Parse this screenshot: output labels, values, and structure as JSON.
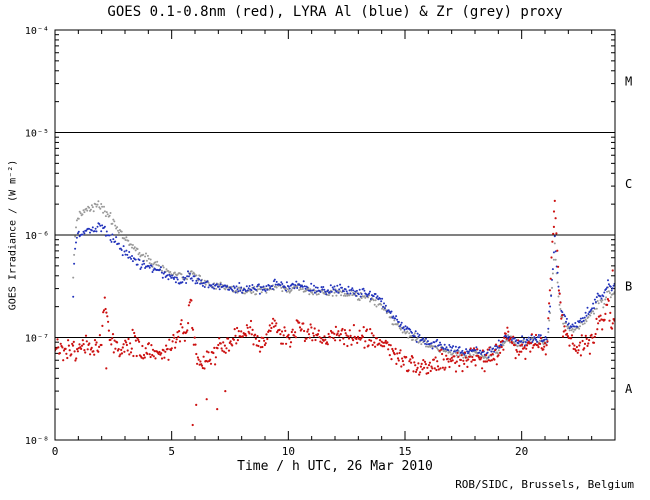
{
  "chart_data": {
    "type": "scatter",
    "title": "GOES 0.1-0.8nm (red), LYRA Al (blue) & Zr (grey) proxy",
    "xlabel": "Time / h UTC, 26 Mar 2010",
    "ylabel": "GOES Irradiance / (W m⁻²)",
    "credit": "ROB/SIDC, Brussels, Belgium",
    "grid": false,
    "legend_position": "none",
    "x_range": [
      0,
      24
    ],
    "x_major_ticks": [
      0,
      5,
      10,
      15,
      20
    ],
    "x_minor_step": 1,
    "y_log_range": [
      -8,
      -4
    ],
    "y_major_decades": [
      -8,
      -7,
      -6,
      -5,
      -4
    ],
    "y_tick_labels": [
      "10⁻⁸",
      "10⁻⁷",
      "10⁻⁶",
      "10⁻⁵",
      "10⁻⁴"
    ],
    "hlines": [
      1e-07,
      1e-06,
      1e-05
    ],
    "flare_class_labels": [
      {
        "label": "M",
        "log_y": -4.5
      },
      {
        "label": "C",
        "log_y": -5.5
      },
      {
        "label": "B",
        "log_y": -6.5
      },
      {
        "label": "A",
        "log_y": -7.5
      }
    ],
    "axis_color": "#000000",
    "series": [
      {
        "id": "lyra-zr-grey",
        "name": "LYRA Zr proxy",
        "color": "#999999",
        "sigma": 0.02,
        "step": 0.04,
        "r": 1.0,
        "anchors": [
          [
            0.78,
            3.5e-07
          ],
          [
            0.82,
            7e-07
          ],
          [
            0.88,
            1.1e-06
          ],
          [
            0.95,
            1.45e-06
          ],
          [
            1.1,
            1.6e-06
          ],
          [
            1.3,
            1.75e-06
          ],
          [
            1.6,
            1.9e-06
          ],
          [
            1.85,
            1.95e-06
          ],
          [
            2.05,
            1.8e-06
          ],
          [
            2.3,
            1.55e-06
          ],
          [
            2.6,
            1.25e-06
          ],
          [
            2.9,
            1e-06
          ],
          [
            3.2,
            8.3e-07
          ],
          [
            3.5,
            7.1e-07
          ],
          [
            3.8,
            6.2e-07
          ],
          [
            4.1,
            5.5e-07
          ],
          [
            4.4,
            5e-07
          ],
          [
            4.7,
            4.6e-07
          ],
          [
            5.0,
            4.25e-07
          ],
          [
            5.3,
            4e-07
          ],
          [
            5.55,
            3.85e-07
          ],
          [
            5.8,
            4.3e-07
          ],
          [
            6.0,
            3.9e-07
          ],
          [
            6.3,
            3.5e-07
          ],
          [
            6.6,
            3.3e-07
          ],
          [
            7.0,
            3.15e-07
          ],
          [
            7.4,
            3e-07
          ],
          [
            7.8,
            2.9e-07
          ],
          [
            8.2,
            2.85e-07
          ],
          [
            8.6,
            2.9e-07
          ],
          [
            9.0,
            2.85e-07
          ],
          [
            9.4,
            3.15e-07
          ],
          [
            9.7,
            3e-07
          ],
          [
            10.0,
            2.95e-07
          ],
          [
            10.4,
            3.05e-07
          ],
          [
            10.8,
            2.9e-07
          ],
          [
            11.2,
            2.75e-07
          ],
          [
            11.6,
            2.7e-07
          ],
          [
            12.0,
            2.8e-07
          ],
          [
            12.4,
            2.65e-07
          ],
          [
            12.8,
            2.6e-07
          ],
          [
            13.2,
            2.5e-07
          ],
          [
            13.6,
            2.35e-07
          ],
          [
            14.0,
            2e-07
          ],
          [
            14.4,
            1.55e-07
          ],
          [
            14.8,
            1.25e-07
          ],
          [
            15.2,
            1.05e-07
          ],
          [
            15.6,
            9.5e-08
          ],
          [
            16.0,
            8.5e-08
          ],
          [
            16.4,
            7.8e-08
          ],
          [
            16.8,
            7.3e-08
          ],
          [
            17.2,
            7e-08
          ],
          [
            17.6,
            6.6e-08
          ],
          [
            18.0,
            7e-08
          ],
          [
            18.4,
            6.6e-08
          ],
          [
            18.8,
            7e-08
          ],
          [
            19.1,
            8e-08
          ],
          [
            19.35,
            1e-07
          ],
          [
            19.6,
            9e-08
          ],
          [
            19.9,
            8.5e-08
          ],
          [
            20.2,
            9e-08
          ],
          [
            20.5,
            9.5e-08
          ],
          [
            20.8,
            9e-08
          ],
          [
            21.1,
            9e-08
          ],
          [
            21.3,
            3e-07
          ],
          [
            21.42,
            8e-07
          ],
          [
            21.55,
            3e-07
          ],
          [
            21.7,
            1.6e-07
          ],
          [
            21.9,
            1.25e-07
          ],
          [
            22.2,
            1.15e-07
          ],
          [
            22.5,
            1.3e-07
          ],
          [
            22.8,
            1.5e-07
          ],
          [
            23.1,
            1.85e-07
          ],
          [
            23.35,
            2.4e-07
          ],
          [
            23.5,
            2.1e-07
          ],
          [
            23.7,
            2.9e-07
          ],
          [
            23.85,
            2.5e-07
          ],
          [
            24,
            2.8e-07
          ]
        ]
      },
      {
        "id": "lyra-al-blue",
        "name": "LYRA Al proxy",
        "color": "#2233bb",
        "sigma": 0.022,
        "step": 0.04,
        "r": 1.0,
        "anchors": [
          [
            0.78,
            2.5e-07
          ],
          [
            0.82,
            5e-07
          ],
          [
            0.88,
            8e-07
          ],
          [
            0.95,
            1e-06
          ],
          [
            1.1,
            1.05e-06
          ],
          [
            1.3,
            1.1e-06
          ],
          [
            1.6,
            1.15e-06
          ],
          [
            1.85,
            1.25e-06
          ],
          [
            2.05,
            1.15e-06
          ],
          [
            2.3,
            1e-06
          ],
          [
            2.6,
            8.5e-07
          ],
          [
            2.9,
            7.2e-07
          ],
          [
            3.2,
            6.2e-07
          ],
          [
            3.5,
            5.6e-07
          ],
          [
            3.8,
            5.1e-07
          ],
          [
            4.1,
            4.7e-07
          ],
          [
            4.4,
            4.4e-07
          ],
          [
            4.7,
            4.1e-07
          ],
          [
            5.0,
            3.9e-07
          ],
          [
            5.3,
            3.7e-07
          ],
          [
            5.55,
            3.6e-07
          ],
          [
            5.8,
            4.1e-07
          ],
          [
            6.0,
            3.7e-07
          ],
          [
            6.3,
            3.4e-07
          ],
          [
            6.6,
            3.3e-07
          ],
          [
            7.0,
            3.2e-07
          ],
          [
            7.4,
            3.1e-07
          ],
          [
            7.8,
            3e-07
          ],
          [
            8.2,
            3e-07
          ],
          [
            8.6,
            3.05e-07
          ],
          [
            9.0,
            3e-07
          ],
          [
            9.4,
            3.4e-07
          ],
          [
            9.7,
            3.2e-07
          ],
          [
            10.0,
            3.15e-07
          ],
          [
            10.4,
            3.3e-07
          ],
          [
            10.8,
            3.1e-07
          ],
          [
            11.2,
            2.95e-07
          ],
          [
            11.6,
            2.9e-07
          ],
          [
            12.0,
            3e-07
          ],
          [
            12.4,
            2.85e-07
          ],
          [
            12.8,
            2.8e-07
          ],
          [
            13.2,
            2.75e-07
          ],
          [
            13.6,
            2.55e-07
          ],
          [
            14.0,
            2.2e-07
          ],
          [
            14.4,
            1.7e-07
          ],
          [
            14.8,
            1.35e-07
          ],
          [
            15.2,
            1.15e-07
          ],
          [
            15.6,
            1e-07
          ],
          [
            16.0,
            9e-08
          ],
          [
            16.4,
            8.5e-08
          ],
          [
            16.8,
            8e-08
          ],
          [
            17.2,
            7.5e-08
          ],
          [
            17.6,
            7e-08
          ],
          [
            18.0,
            7.5e-08
          ],
          [
            18.4,
            7e-08
          ],
          [
            18.8,
            7.5e-08
          ],
          [
            19.1,
            8.5e-08
          ],
          [
            19.35,
            1.05e-07
          ],
          [
            19.6,
            9.5e-08
          ],
          [
            19.9,
            9e-08
          ],
          [
            20.2,
            9.5e-08
          ],
          [
            20.5,
            1e-07
          ],
          [
            20.8,
            9.5e-08
          ],
          [
            21.1,
            9.5e-08
          ],
          [
            21.3,
            3.5e-07
          ],
          [
            21.42,
            9.5e-07
          ],
          [
            21.55,
            3.5e-07
          ],
          [
            21.7,
            1.8e-07
          ],
          [
            21.9,
            1.4e-07
          ],
          [
            22.2,
            1.3e-07
          ],
          [
            22.5,
            1.45e-07
          ],
          [
            22.8,
            1.7e-07
          ],
          [
            23.1,
            2.1e-07
          ],
          [
            23.35,
            2.8e-07
          ],
          [
            23.5,
            2.4e-07
          ],
          [
            23.7,
            3.4e-07
          ],
          [
            23.85,
            2.9e-07
          ],
          [
            24,
            3.3e-07
          ]
        ]
      },
      {
        "id": "goes-red",
        "name": "GOES 0.1-0.8nm",
        "color": "#cc1111",
        "sigma": 0.05,
        "step": 0.035,
        "r": 1.1,
        "anchors": [
          [
            0,
            7.5e-08
          ],
          [
            0.3,
            7e-08
          ],
          [
            0.6,
            8e-08
          ],
          [
            0.9,
            7e-08
          ],
          [
            1.2,
            8.5e-08
          ],
          [
            1.5,
            7.5e-08
          ],
          [
            1.8,
            8e-08
          ],
          [
            2.0,
            9e-08
          ],
          [
            2.15,
            2.6e-07
          ],
          [
            2.3,
            1.3e-07
          ],
          [
            2.5,
            9e-08
          ],
          [
            2.8,
            8e-08
          ],
          [
            3.1,
            9e-08
          ],
          [
            3.4,
            8.5e-08
          ],
          [
            3.7,
            7.5e-08
          ],
          [
            4.0,
            7e-08
          ],
          [
            4.3,
            7.5e-08
          ],
          [
            4.6,
            7e-08
          ],
          [
            4.9,
            8e-08
          ],
          [
            5.2,
            1e-07
          ],
          [
            5.45,
            1.3e-07
          ],
          [
            5.6,
            1e-07
          ],
          [
            5.8,
            2.1e-07
          ],
          [
            5.95,
            1.1e-07
          ],
          [
            6.1,
            6e-08
          ],
          [
            6.3,
            5e-08
          ],
          [
            6.5,
            6.5e-08
          ],
          [
            6.8,
            7e-08
          ],
          [
            7.1,
            8.5e-08
          ],
          [
            7.4,
            9e-08
          ],
          [
            7.7,
            9.5e-08
          ],
          [
            8.0,
            1e-07
          ],
          [
            8.3,
            1.15e-07
          ],
          [
            8.6,
            1e-07
          ],
          [
            9.0,
            9e-08
          ],
          [
            9.4,
            1.5e-07
          ],
          [
            9.6,
            1.2e-07
          ],
          [
            9.9,
            1e-07
          ],
          [
            10.2,
            1.05e-07
          ],
          [
            10.5,
            1.35e-07
          ],
          [
            10.8,
            1.1e-07
          ],
          [
            11.1,
            1e-07
          ],
          [
            11.5,
            9.5e-08
          ],
          [
            12.0,
            1.05e-07
          ],
          [
            12.4,
            1e-07
          ],
          [
            12.8,
            1.05e-07
          ],
          [
            13.2,
            1e-07
          ],
          [
            13.6,
            9.5e-08
          ],
          [
            14.0,
            9e-08
          ],
          [
            14.4,
            7.5e-08
          ],
          [
            14.8,
            6.5e-08
          ],
          [
            15.2,
            5.5e-08
          ],
          [
            15.6,
            5e-08
          ],
          [
            16.0,
            5e-08
          ],
          [
            16.4,
            6e-08
          ],
          [
            16.8,
            5.5e-08
          ],
          [
            17.2,
            6e-08
          ],
          [
            17.6,
            6e-08
          ],
          [
            18.0,
            6.5e-08
          ],
          [
            18.4,
            6e-08
          ],
          [
            18.8,
            6.5e-08
          ],
          [
            19.1,
            8e-08
          ],
          [
            19.35,
            1.15e-07
          ],
          [
            19.6,
            9e-08
          ],
          [
            19.9,
            7.5e-08
          ],
          [
            20.2,
            8e-08
          ],
          [
            20.5,
            9e-08
          ],
          [
            20.8,
            8.5e-08
          ],
          [
            21.1,
            9e-08
          ],
          [
            21.3,
            7e-07
          ],
          [
            21.42,
            2e-06
          ],
          [
            21.55,
            5e-07
          ],
          [
            21.7,
            1.6e-07
          ],
          [
            21.9,
            1.05e-07
          ],
          [
            22.2,
            9e-08
          ],
          [
            22.5,
            8.5e-08
          ],
          [
            22.8,
            9e-08
          ],
          [
            23.1,
            1e-07
          ],
          [
            23.35,
            1.6e-07
          ],
          [
            23.5,
            1.2e-07
          ],
          [
            23.7,
            2.6e-07
          ],
          [
            23.85,
            1.3e-07
          ],
          [
            24,
            1.4e-07
          ]
        ],
        "outliers": [
          [
            5.9,
            1.4e-08
          ],
          [
            6.05,
            2.2e-08
          ],
          [
            6.5,
            2.5e-08
          ],
          [
            6.95,
            2e-08
          ],
          [
            7.3,
            3e-08
          ],
          [
            2.2,
            5e-08
          ],
          [
            21.38,
            1.2e-06
          ],
          [
            23.9,
            4.5e-07
          ]
        ]
      }
    ]
  }
}
